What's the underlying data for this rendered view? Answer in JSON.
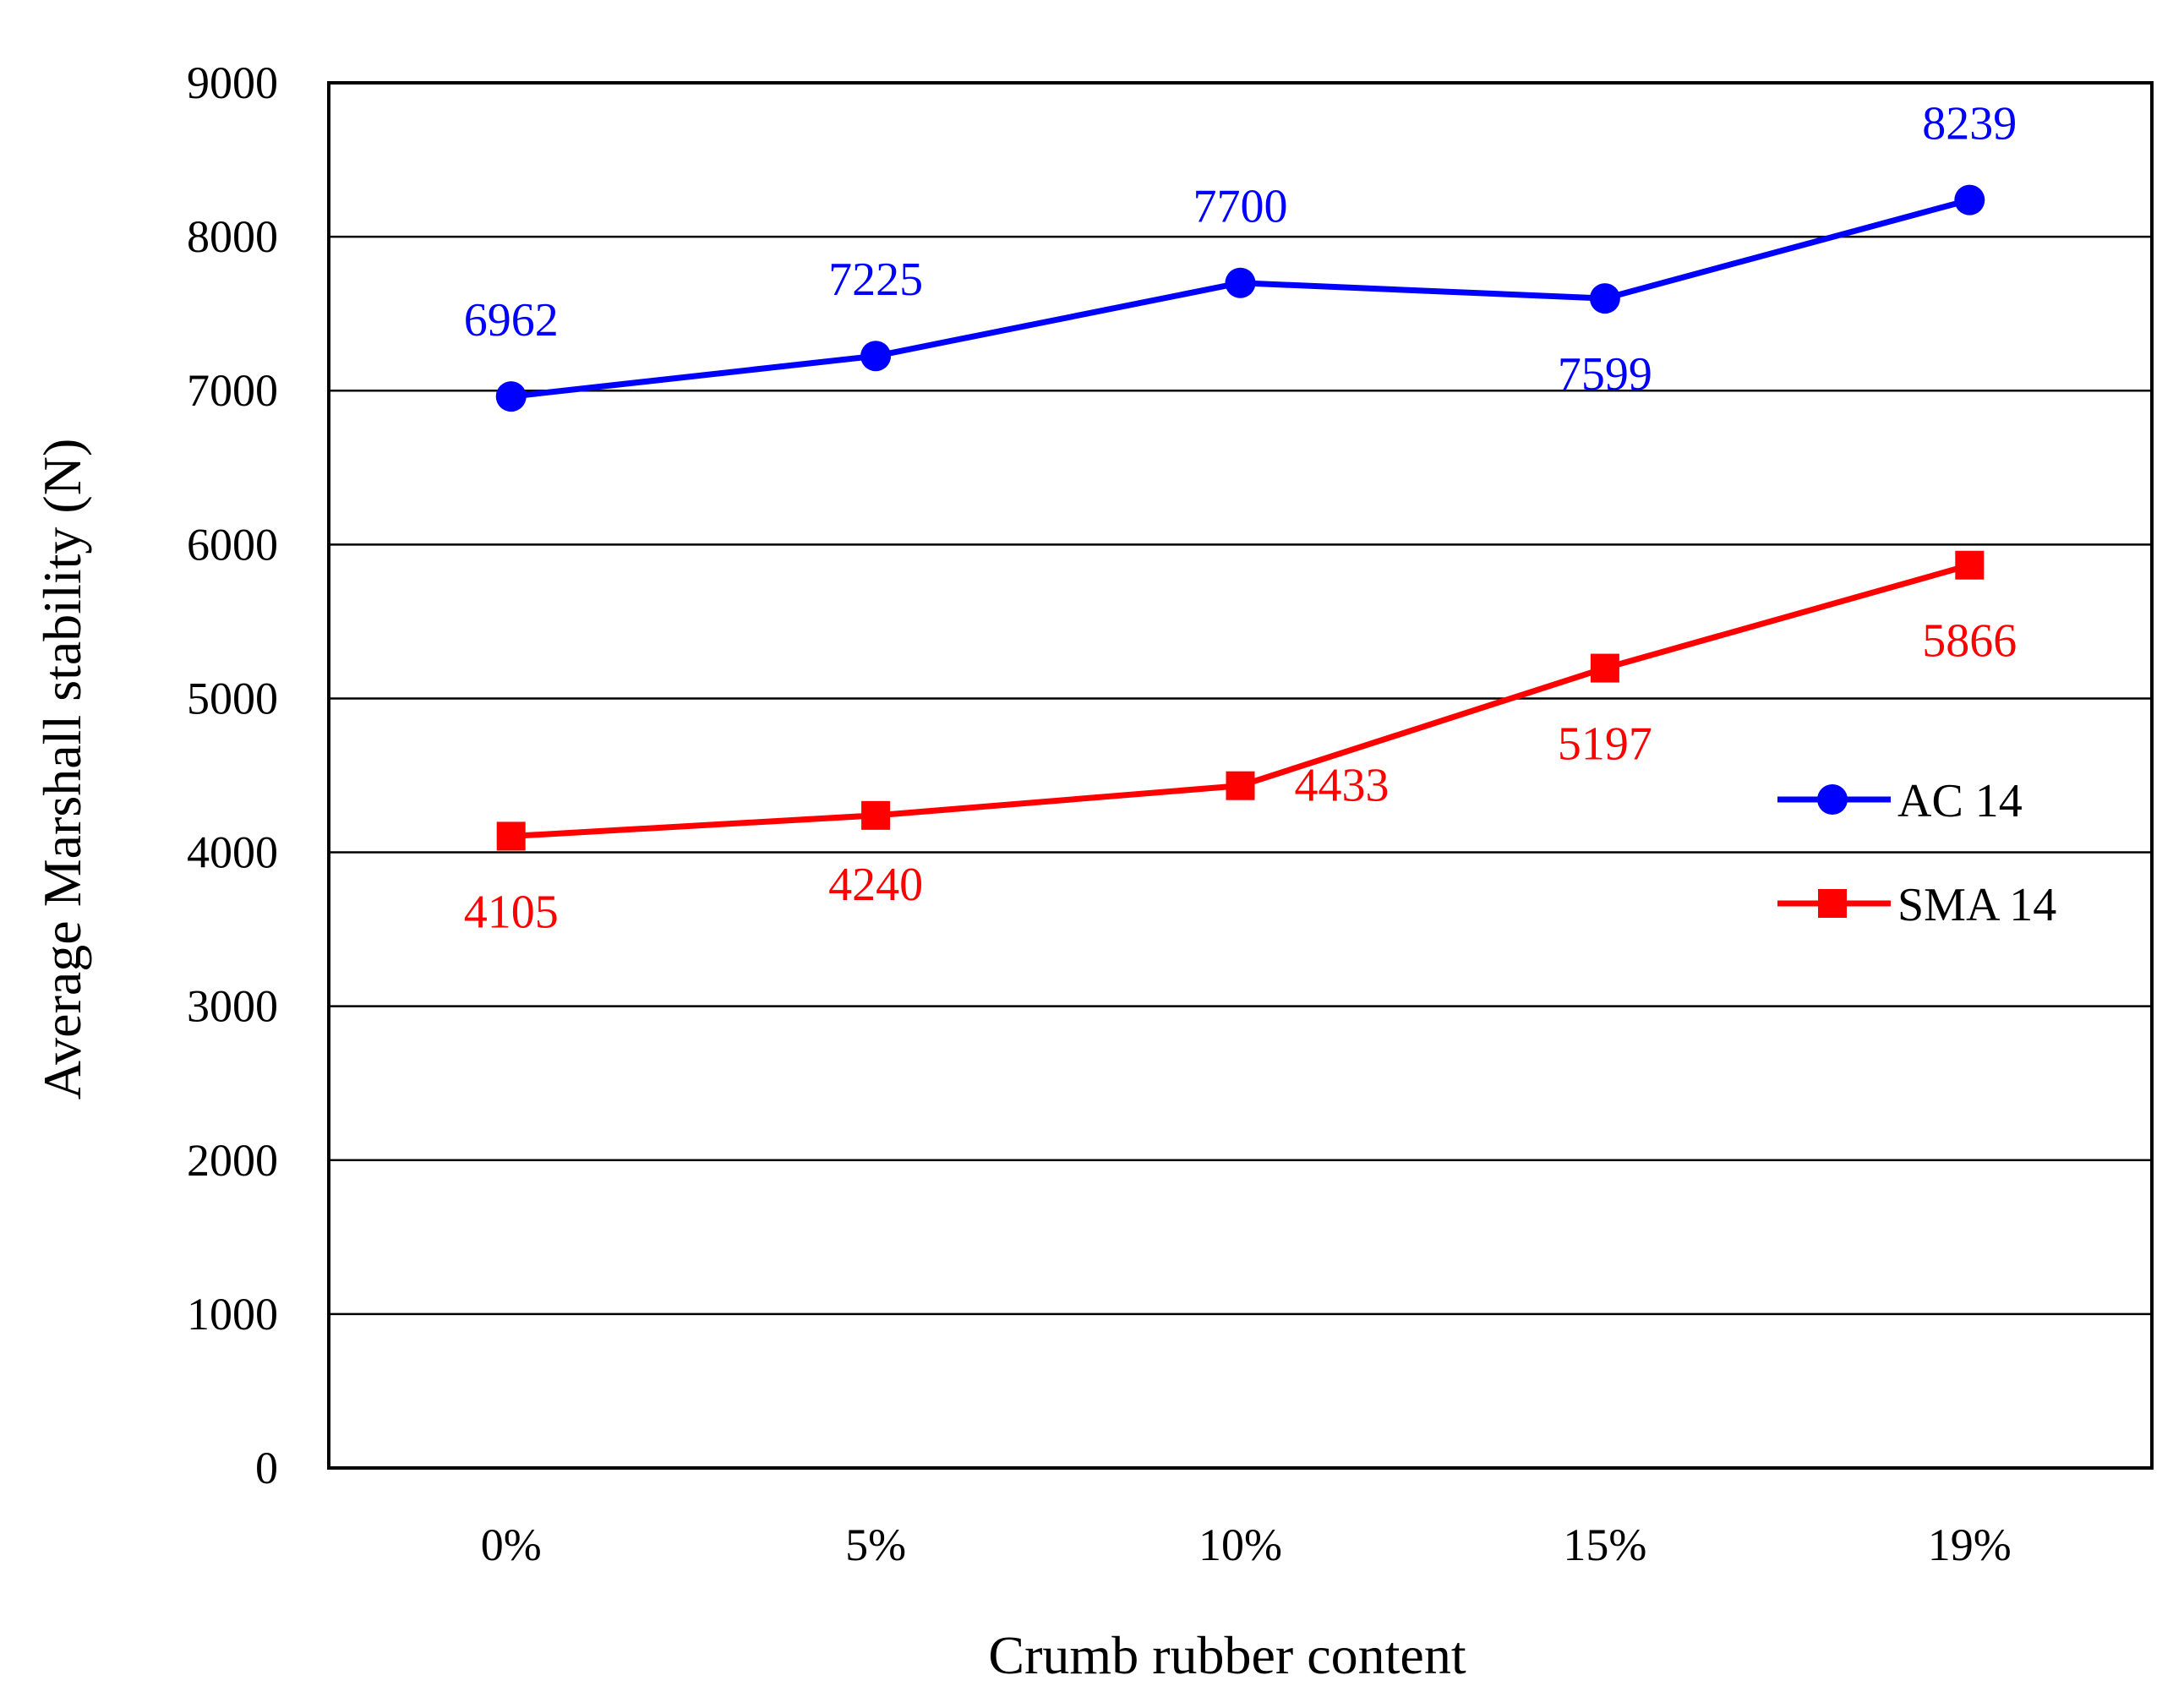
{
  "chart_data": {
    "type": "line",
    "title": "",
    "xlabel": "Crumb rubber content",
    "ylabel": "Average Marshall stability (N)",
    "categories": [
      "0%",
      "5%",
      "10%",
      "15%",
      "19%"
    ],
    "ylim": [
      0,
      9000
    ],
    "yticks": [
      "0",
      "1000",
      "2000",
      "3000",
      "4000",
      "5000",
      "6000",
      "7000",
      "8000",
      "9000"
    ],
    "grid": "horizontal",
    "legend_position": "right",
    "series": [
      {
        "name": "AC 14",
        "color": "#0000ff",
        "marker": "circle",
        "values": [
          6962,
          7225,
          7700,
          7599,
          8239
        ],
        "labels": [
          "6962",
          "7225",
          "7700",
          "7599",
          "8239"
        ]
      },
      {
        "name": "SMA 14",
        "color": "#ff0000",
        "marker": "square",
        "values": [
          4105,
          4240,
          4433,
          5197,
          5866
        ],
        "labels": [
          "4105",
          "4240",
          "4433",
          "5197",
          "5866"
        ]
      }
    ]
  }
}
